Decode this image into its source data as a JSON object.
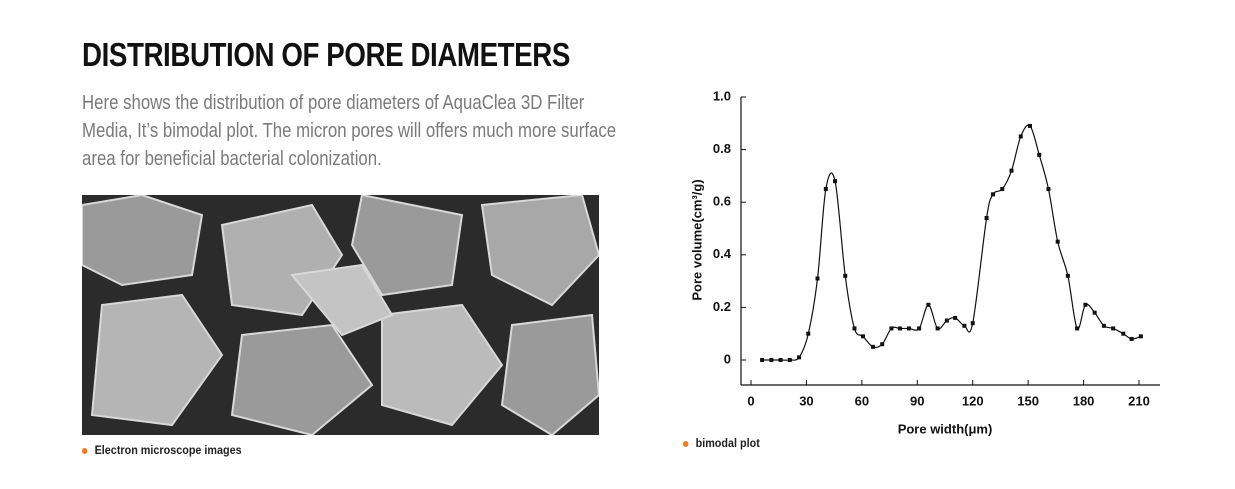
{
  "heading": "DISTRIBUTION OF PORE DIAMETERS",
  "description": "Here shows the distribution of pore diameters of AquaClea 3D Filter Media, It’s bimodal plot. The micron pores will offers much more surface area for beneficial bacterial colonization.",
  "image_caption": "Electron microscope images",
  "chart_data": {
    "type": "line",
    "caption": "bimodal plot",
    "x_label": "Pore width(μm)",
    "y_label": "Pore volume(cm³/g)",
    "x": [
      6,
      11,
      16,
      21,
      26,
      31,
      36,
      40.5,
      45.5,
      51,
      56,
      60.6,
      66,
      71,
      76,
      80.6,
      85.5,
      91,
      96,
      101,
      106,
      110.5,
      115.5,
      120,
      127.5,
      131,
      136,
      141,
      146,
      151,
      156,
      161,
      166,
      171.5,
      176.5,
      181,
      186,
      191,
      196,
      201.5,
      206,
      211
    ],
    "series": [
      {
        "color": "#111111",
        "values": [
          0,
          0,
          0,
          0,
          0.01,
          0.1,
          0.31,
          0.65,
          0.68,
          0.32,
          0.12,
          0.09,
          0.05,
          0.06,
          0.12,
          0.12,
          0.12,
          0.12,
          0.21,
          0.12,
          0.15,
          0.16,
          0.13,
          0.14,
          0.54,
          0.63,
          0.65,
          0.72,
          0.85,
          0.89,
          0.78,
          0.65,
          0.45,
          0.32,
          0.12,
          0.21,
          0.18,
          0.13,
          0.12,
          0.1,
          0.08,
          0.09
        ]
      }
    ],
    "xlim": [
      0,
      210
    ],
    "xticks": [
      0,
      30,
      60,
      90,
      120,
      150,
      180,
      210
    ],
    "ylim": [
      0,
      1
    ],
    "yticks": [
      0,
      {
        "value": 0.2,
        "label": "0.2"
      },
      {
        "value": 0.4,
        "label": "0.4"
      },
      {
        "value": 0.6,
        "label": "0.6"
      },
      {
        "value": 0.8,
        "label": "0.8"
      },
      {
        "value": 1,
        "label": "1.0"
      }
    ]
  }
}
